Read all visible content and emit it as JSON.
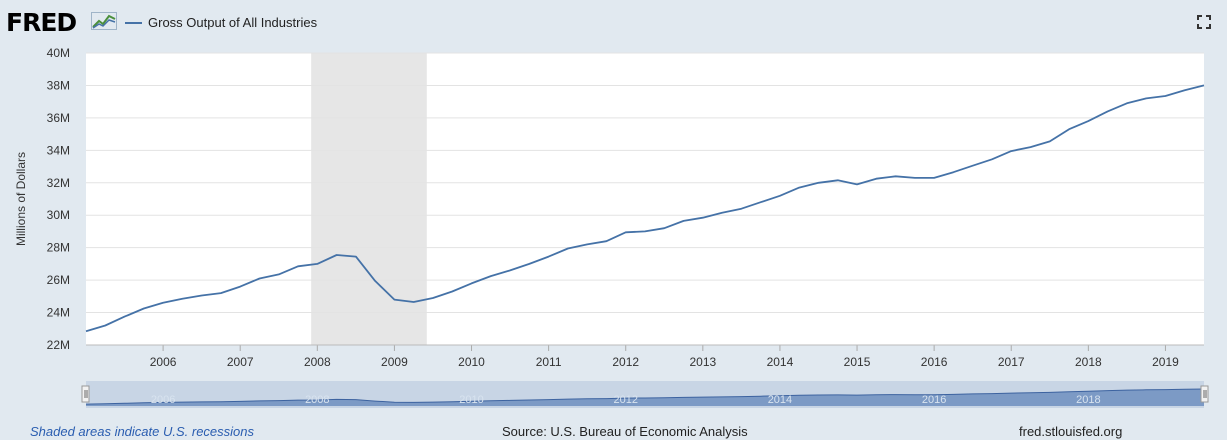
{
  "header": {
    "logo_text": "FRED",
    "legend_label": "Gross Output of All Industries",
    "series_color": "#4572a7",
    "fullscreen_icon": "fullscreen-icon"
  },
  "chart_data": {
    "type": "line",
    "title": "Gross Output of All Industries",
    "xlabel": "",
    "ylabel": "Millions of Dollars",
    "ylim": [
      22,
      40
    ],
    "y_unit_suffix": "M",
    "y_ticks": [
      "22M",
      "24M",
      "26M",
      "28M",
      "30M",
      "32M",
      "34M",
      "36M",
      "38M",
      "40M"
    ],
    "x_ticks": [
      "2006",
      "2007",
      "2008",
      "2009",
      "2010",
      "2011",
      "2012",
      "2013",
      "2014",
      "2015",
      "2016",
      "2017",
      "2018",
      "2019"
    ],
    "xlim": [
      2005.0,
      2019.5
    ],
    "grid": true,
    "legend": "top-left",
    "recessions": [
      {
        "start": 2007.92,
        "end": 2009.42
      }
    ],
    "series": [
      {
        "name": "Gross Output of All Industries",
        "x": [
          2005.0,
          2005.25,
          2005.5,
          2005.75,
          2006.0,
          2006.25,
          2006.5,
          2006.75,
          2007.0,
          2007.25,
          2007.5,
          2007.75,
          2008.0,
          2008.25,
          2008.5,
          2008.75,
          2009.0,
          2009.25,
          2009.5,
          2009.75,
          2010.0,
          2010.25,
          2010.5,
          2010.75,
          2011.0,
          2011.25,
          2011.5,
          2011.75,
          2012.0,
          2012.25,
          2012.5,
          2012.75,
          2013.0,
          2013.25,
          2013.5,
          2013.75,
          2014.0,
          2014.25,
          2014.5,
          2014.75,
          2015.0,
          2015.25,
          2015.5,
          2015.75,
          2016.0,
          2016.25,
          2016.5,
          2016.75,
          2017.0,
          2017.25,
          2017.5,
          2017.75,
          2018.0,
          2018.25,
          2018.5,
          2018.75,
          2019.0,
          2019.25,
          2019.5
        ],
        "values": [
          22.85,
          23.2,
          23.75,
          24.25,
          24.6,
          24.85,
          25.05,
          25.2,
          25.6,
          26.1,
          26.35,
          26.85,
          27.0,
          27.55,
          27.45,
          25.95,
          24.8,
          24.65,
          24.9,
          25.3,
          25.8,
          26.25,
          26.6,
          27.0,
          27.45,
          27.95,
          28.2,
          28.4,
          28.95,
          29.0,
          29.2,
          29.65,
          29.85,
          30.15,
          30.4,
          30.8,
          31.2,
          31.7,
          32.0,
          32.15,
          31.9,
          32.25,
          32.4,
          32.3,
          32.3,
          32.65,
          33.05,
          33.45,
          33.95,
          34.2,
          34.55,
          35.3,
          35.8,
          36.4,
          36.9,
          37.2,
          37.35,
          37.7,
          38.0
        ]
      }
    ],
    "navigator_ticks": [
      "2006",
      "2008",
      "2010",
      "2012",
      "2014",
      "2016",
      "2018"
    ]
  },
  "footer": {
    "recession_note": "Shaded areas indicate U.S. recessions",
    "source": "Source: U.S. Bureau of Economic Analysis",
    "site": "fred.stlouisfed.org"
  }
}
